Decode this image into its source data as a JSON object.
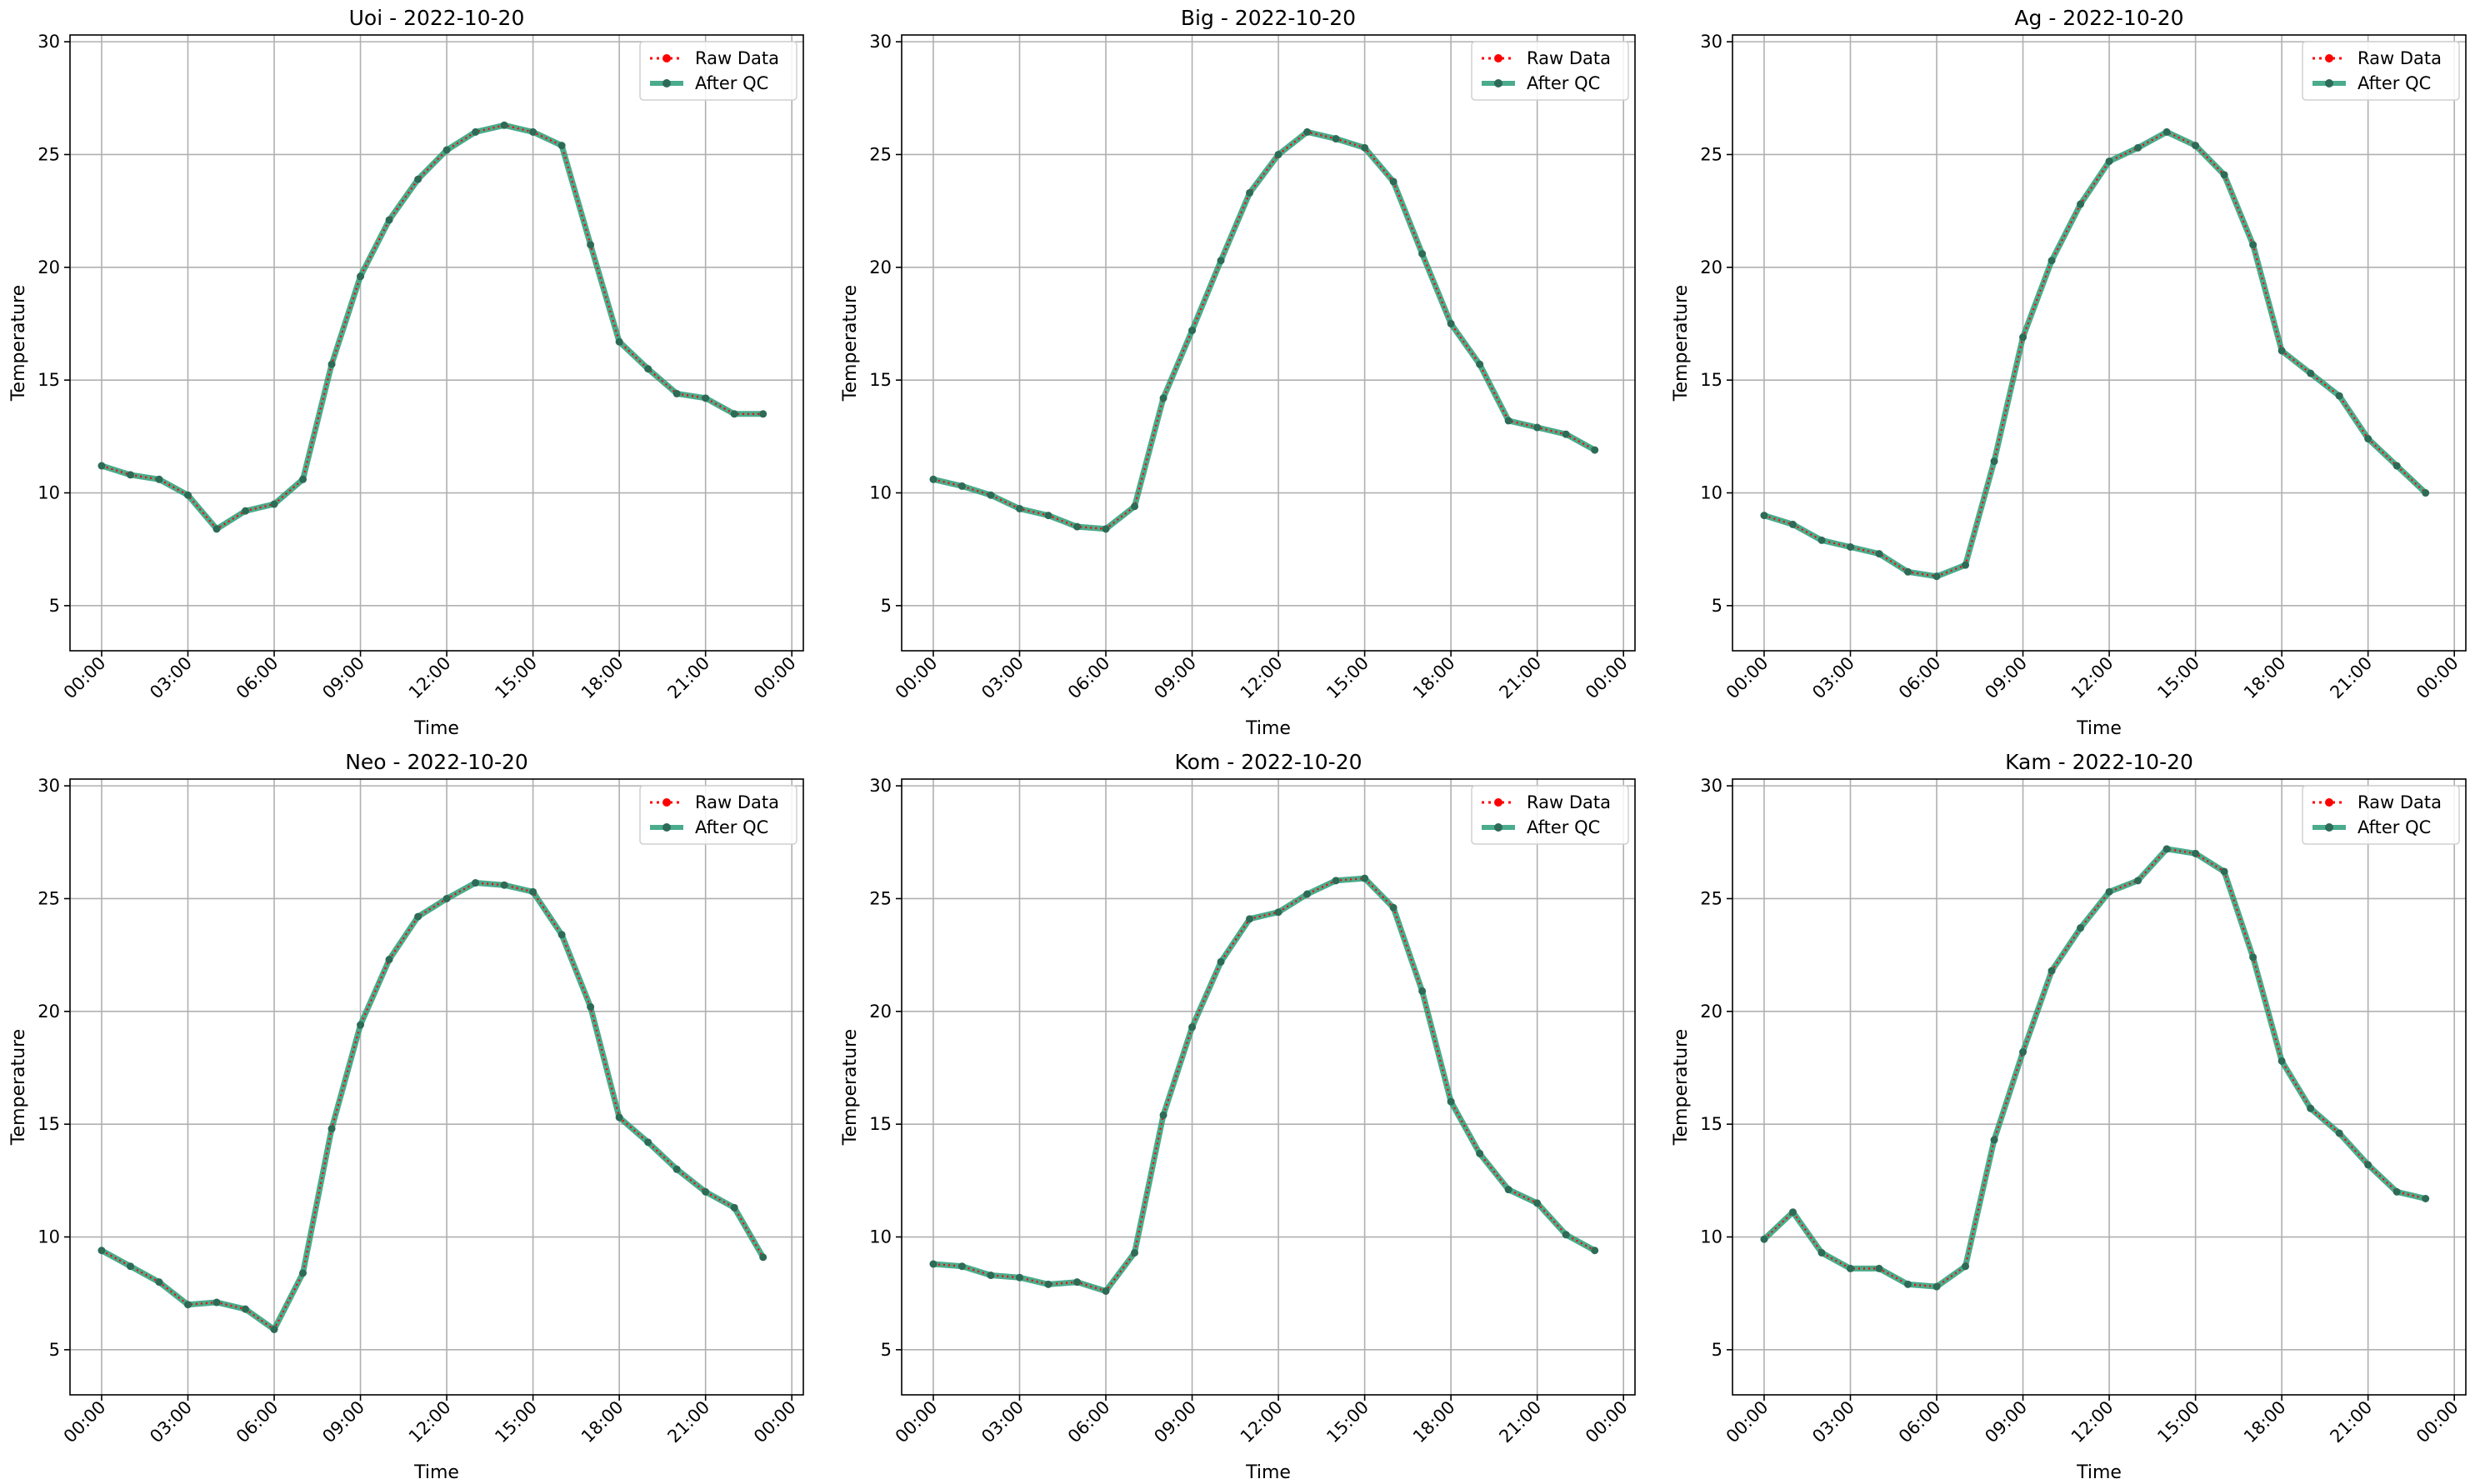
{
  "figure": {
    "layout": "2 rows x 3 columns",
    "legend_position": "top-right",
    "grid": true
  },
  "styles": {
    "raw_color": "#ff0000",
    "qc_color": "#2a9d78",
    "marker_color": "#2e6b57",
    "grid_color": "#b0b0b0"
  },
  "chart_data": [
    {
      "type": "line",
      "title": "Uoi - 2022-10-20",
      "xlabel": "Time",
      "ylabel": "Temperature",
      "x_tick_labels": [
        "00:00",
        "03:00",
        "06:00",
        "09:00",
        "12:00",
        "15:00",
        "18:00",
        "21:00",
        "00:00"
      ],
      "y_ticks": [
        5,
        10,
        15,
        20,
        25,
        30
      ],
      "ylim": [
        3,
        30.3
      ],
      "x_hours": [
        0,
        1,
        2,
        3,
        4,
        5,
        6,
        7,
        8,
        9,
        10,
        11,
        12,
        13,
        14,
        15,
        16,
        17,
        18,
        19,
        20,
        21,
        22,
        23
      ],
      "series": [
        {
          "name": "Raw Data",
          "values": [
            11.2,
            10.8,
            10.6,
            9.9,
            8.4,
            9.2,
            9.5,
            10.6,
            15.7,
            19.6,
            22.1,
            23.9,
            25.2,
            26.0,
            26.3,
            26.0,
            25.4,
            21.0,
            16.7,
            15.5,
            14.4,
            14.2,
            13.5,
            13.5
          ]
        },
        {
          "name": "After QC",
          "values": [
            11.2,
            10.8,
            10.6,
            9.9,
            8.4,
            9.2,
            9.5,
            10.6,
            15.7,
            19.6,
            22.1,
            23.9,
            25.2,
            26.0,
            26.3,
            26.0,
            25.4,
            21.0,
            16.7,
            15.5,
            14.4,
            14.2,
            13.5,
            13.5
          ]
        }
      ]
    },
    {
      "type": "line",
      "title": "Big - 2022-10-20",
      "xlabel": "Time",
      "ylabel": "Temperature",
      "x_tick_labels": [
        "00:00",
        "03:00",
        "06:00",
        "09:00",
        "12:00",
        "15:00",
        "18:00",
        "21:00",
        "00:00"
      ],
      "y_ticks": [
        5,
        10,
        15,
        20,
        25,
        30
      ],
      "ylim": [
        3,
        30.3
      ],
      "x_hours": [
        0,
        1,
        2,
        3,
        4,
        5,
        6,
        7,
        8,
        9,
        10,
        11,
        12,
        13,
        14,
        15,
        16,
        17,
        18,
        19,
        20,
        21,
        22,
        23
      ],
      "series": [
        {
          "name": "Raw Data",
          "values": [
            10.6,
            10.3,
            9.9,
            9.3,
            9.0,
            8.5,
            8.4,
            9.4,
            14.2,
            17.2,
            20.3,
            23.3,
            25.0,
            26.0,
            25.7,
            25.3,
            23.8,
            20.6,
            17.5,
            15.7,
            13.2,
            12.9,
            12.6,
            11.9
          ]
        },
        {
          "name": "After QC",
          "values": [
            10.6,
            10.3,
            9.9,
            9.3,
            9.0,
            8.5,
            8.4,
            9.4,
            14.2,
            17.2,
            20.3,
            23.3,
            25.0,
            26.0,
            25.7,
            25.3,
            23.8,
            20.6,
            17.5,
            15.7,
            13.2,
            12.9,
            12.6,
            11.9
          ]
        }
      ]
    },
    {
      "type": "line",
      "title": "Ag - 2022-10-20",
      "xlabel": "Time",
      "ylabel": "Temperature",
      "x_tick_labels": [
        "00:00",
        "03:00",
        "06:00",
        "09:00",
        "12:00",
        "15:00",
        "18:00",
        "21:00",
        "00:00"
      ],
      "y_ticks": [
        5,
        10,
        15,
        20,
        25,
        30
      ],
      "ylim": [
        3,
        30.3
      ],
      "x_hours": [
        0,
        1,
        2,
        3,
        4,
        5,
        6,
        7,
        8,
        9,
        10,
        11,
        12,
        13,
        14,
        15,
        16,
        17,
        18,
        19,
        20,
        21,
        22,
        23
      ],
      "series": [
        {
          "name": "Raw Data",
          "values": [
            9.0,
            8.6,
            7.9,
            7.6,
            7.3,
            6.5,
            6.3,
            6.8,
            11.4,
            16.9,
            20.3,
            22.8,
            24.7,
            25.3,
            26.0,
            25.4,
            24.1,
            21.0,
            16.3,
            15.3,
            14.3,
            12.4,
            11.2,
            10.0
          ]
        },
        {
          "name": "After QC",
          "values": [
            9.0,
            8.6,
            7.9,
            7.6,
            7.3,
            6.5,
            6.3,
            6.8,
            11.4,
            16.9,
            20.3,
            22.8,
            24.7,
            25.3,
            26.0,
            25.4,
            24.1,
            21.0,
            16.3,
            15.3,
            14.3,
            12.4,
            11.2,
            10.0
          ]
        }
      ]
    },
    {
      "type": "line",
      "title": "Neo - 2022-10-20",
      "xlabel": "Time",
      "ylabel": "Temperature",
      "x_tick_labels": [
        "00:00",
        "03:00",
        "06:00",
        "09:00",
        "12:00",
        "15:00",
        "18:00",
        "21:00",
        "00:00"
      ],
      "y_ticks": [
        5,
        10,
        15,
        20,
        25,
        30
      ],
      "ylim": [
        3,
        30.3
      ],
      "x_hours": [
        0,
        1,
        2,
        3,
        4,
        5,
        6,
        7,
        8,
        9,
        10,
        11,
        12,
        13,
        14,
        15,
        16,
        17,
        18,
        19,
        20,
        21,
        22,
        23
      ],
      "series": [
        {
          "name": "Raw Data",
          "values": [
            9.4,
            8.7,
            8.0,
            7.0,
            7.1,
            6.8,
            5.9,
            8.4,
            14.8,
            19.4,
            22.3,
            24.2,
            25.0,
            25.7,
            25.6,
            25.3,
            23.4,
            20.2,
            15.3,
            14.2,
            13.0,
            12.0,
            11.3,
            9.1
          ]
        },
        {
          "name": "After QC",
          "values": [
            9.4,
            8.7,
            8.0,
            7.0,
            7.1,
            6.8,
            5.9,
            8.4,
            14.8,
            19.4,
            22.3,
            24.2,
            25.0,
            25.7,
            25.6,
            25.3,
            23.4,
            20.2,
            15.3,
            14.2,
            13.0,
            12.0,
            11.3,
            9.1
          ]
        }
      ]
    },
    {
      "type": "line",
      "title": "Kom - 2022-10-20",
      "xlabel": "Time",
      "ylabel": "Temperature",
      "x_tick_labels": [
        "00:00",
        "03:00",
        "06:00",
        "09:00",
        "12:00",
        "15:00",
        "18:00",
        "21:00",
        "00:00"
      ],
      "y_ticks": [
        5,
        10,
        15,
        20,
        25,
        30
      ],
      "ylim": [
        3,
        30.3
      ],
      "x_hours": [
        0,
        1,
        2,
        3,
        4,
        5,
        6,
        7,
        8,
        9,
        10,
        11,
        12,
        13,
        14,
        15,
        16,
        17,
        18,
        19,
        20,
        21,
        22,
        23
      ],
      "series": [
        {
          "name": "Raw Data",
          "values": [
            8.8,
            8.7,
            8.3,
            8.2,
            7.9,
            8.0,
            7.6,
            9.3,
            15.4,
            19.3,
            22.2,
            24.1,
            24.4,
            25.2,
            25.8,
            25.9,
            24.6,
            20.9,
            16.0,
            13.7,
            12.1,
            11.5,
            10.1,
            9.4
          ]
        },
        {
          "name": "After QC",
          "values": [
            8.8,
            8.7,
            8.3,
            8.2,
            7.9,
            8.0,
            7.6,
            9.3,
            15.4,
            19.3,
            22.2,
            24.1,
            24.4,
            25.2,
            25.8,
            25.9,
            24.6,
            20.9,
            16.0,
            13.7,
            12.1,
            11.5,
            10.1,
            9.4
          ]
        }
      ]
    },
    {
      "type": "line",
      "title": "Kam - 2022-10-20",
      "xlabel": "Time",
      "ylabel": "Temperature",
      "x_tick_labels": [
        "00:00",
        "03:00",
        "06:00",
        "09:00",
        "12:00",
        "15:00",
        "18:00",
        "21:00",
        "00:00"
      ],
      "y_ticks": [
        5,
        10,
        15,
        20,
        25,
        30
      ],
      "ylim": [
        3,
        30.3
      ],
      "x_hours": [
        0,
        1,
        2,
        3,
        4,
        5,
        6,
        7,
        8,
        9,
        10,
        11,
        12,
        13,
        14,
        15,
        16,
        17,
        18,
        19,
        20,
        21,
        22,
        23
      ],
      "series": [
        {
          "name": "Raw Data",
          "values": [
            9.9,
            11.1,
            9.3,
            8.6,
            8.6,
            7.9,
            7.8,
            8.7,
            14.3,
            18.2,
            21.8,
            23.7,
            25.3,
            25.8,
            27.2,
            27.0,
            26.2,
            22.4,
            17.8,
            15.7,
            14.6,
            13.2,
            12.0,
            11.7
          ]
        },
        {
          "name": "After QC",
          "values": [
            9.9,
            11.1,
            9.3,
            8.6,
            8.6,
            7.9,
            7.8,
            8.7,
            14.3,
            18.2,
            21.8,
            23.7,
            25.3,
            25.8,
            27.2,
            27.0,
            26.2,
            22.4,
            17.8,
            15.7,
            14.6,
            13.2,
            12.0,
            11.7
          ]
        }
      ]
    }
  ]
}
